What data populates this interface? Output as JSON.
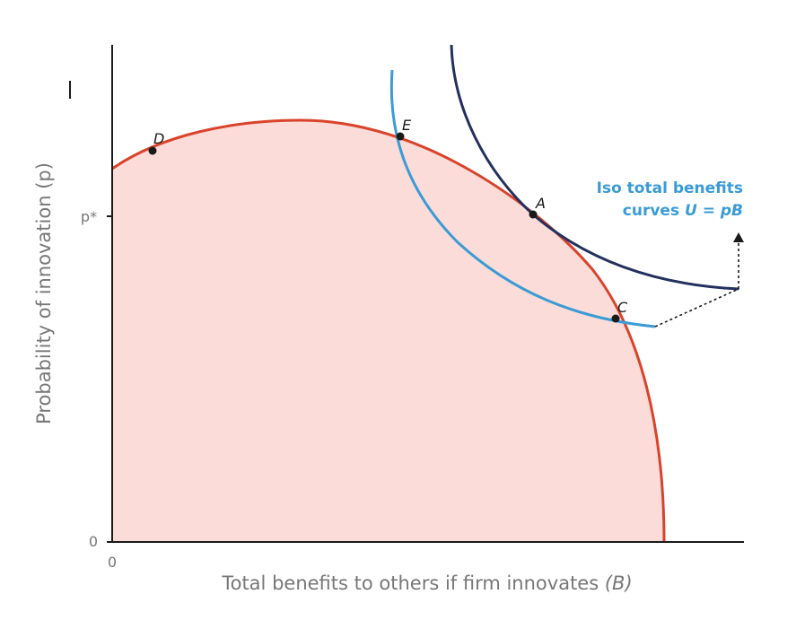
{
  "axes": {
    "x_title": "Total benefits to others if firm innovates ",
    "x_title_var": "(B)",
    "y_title": "Probability of innovation (p)",
    "x_origin_label": "0",
    "y_origin_label": "0",
    "y_pstar_label": "p*"
  },
  "points": {
    "D": "D",
    "E": "E",
    "A": "A",
    "C": "C"
  },
  "curve_label": {
    "line1": "Iso total benefits",
    "line2_prefix": "curves ",
    "line2_formula": "U = pB"
  },
  "colors": {
    "frontier": "#d9432b",
    "frontier_fill": "#fbdcd8",
    "iso_low": "#3a9bd5",
    "iso_high": "#23305e",
    "axis": "#1a1a1a",
    "muted_text": "#777777"
  }
}
